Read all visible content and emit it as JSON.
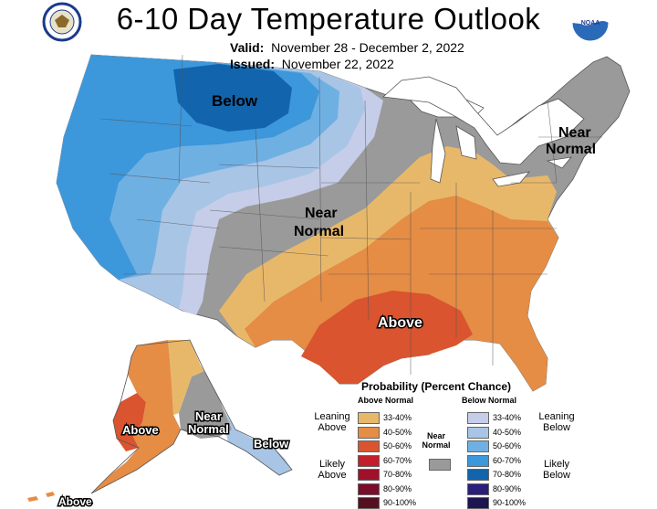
{
  "title": "6-10 Day Temperature Outlook",
  "valid_label": "Valid:",
  "valid_value": "November 28 - December 2, 2022",
  "issued_label": "Issued:",
  "issued_value": "November 22, 2022",
  "logos": {
    "left": "commerce-seal-icon",
    "right": "noaa-logo-icon",
    "noaa_text": "NOAA"
  },
  "map_labels": {
    "below_main": "Below",
    "near_normal_center_1": "Near",
    "near_normal_center_2": "Normal",
    "near_normal_ne_1": "Near",
    "near_normal_ne_2": "Normal",
    "above_south": "Above",
    "ak_above": "Above",
    "ak_near_1": "Near",
    "ak_near_2": "Normal",
    "ak_below": "Below",
    "ak_above_bottom": "Above"
  },
  "colors": {
    "above": [
      "#e8b86a",
      "#e58c45",
      "#d9542f",
      "#c21e2b",
      "#a0102b",
      "#7a0d2a",
      "#551020"
    ],
    "below": [
      "#c5cde8",
      "#a8c5e6",
      "#6fb0e3",
      "#3c97db",
      "#1264ac",
      "#2b1f7a",
      "#1d1450"
    ],
    "near": "#9a9a9a"
  },
  "legend": {
    "title": "Probability (Percent Chance)",
    "above_header": "Above Normal",
    "below_header": "Below Normal",
    "near_label_1": "Near",
    "near_label_2": "Normal",
    "leaning_above_1": "Leaning",
    "leaning_above_2": "Above",
    "likely_above_1": "Likely",
    "likely_above_2": "Above",
    "leaning_below_1": "Leaning",
    "leaning_below_2": "Below",
    "likely_below_1": "Likely",
    "likely_below_2": "Below",
    "ranges": [
      "33-40%",
      "40-50%",
      "50-60%",
      "60-70%",
      "70-80%",
      "80-90%",
      "90-100%"
    ]
  }
}
